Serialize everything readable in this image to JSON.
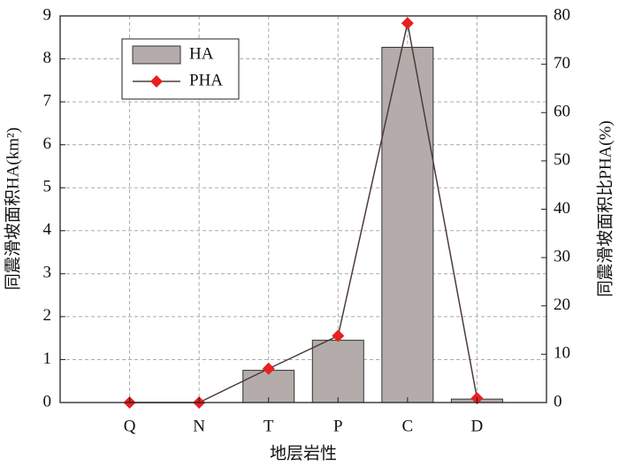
{
  "chart_data": {
    "type": "bar",
    "categories": [
      "Q",
      "N",
      "T",
      "P",
      "C",
      "D"
    ],
    "xlabel": "地层岩性",
    "ylabel": "同震滑坡面积HA(km²)",
    "y2label": "同震滑坡面积比PHA(%)",
    "series": [
      {
        "name": "HA",
        "type": "bar",
        "color": "#b4acaa",
        "values": [
          0,
          0,
          0.75,
          1.45,
          8.27,
          0.08
        ]
      },
      {
        "name": "PHA",
        "type": "line",
        "axis": "y2",
        "color": "#4d3b3b",
        "marker_color": "#e8201e",
        "values": [
          0,
          0,
          7.0,
          13.8,
          78.5,
          0.9
        ]
      }
    ],
    "ylim": [
      0,
      9
    ],
    "yticks": [
      0,
      1,
      2,
      3,
      4,
      5,
      6,
      7,
      8,
      9
    ],
    "y2lim": [
      0,
      80
    ],
    "y2ticks": [
      0,
      10,
      20,
      30,
      40,
      50,
      60,
      70,
      80
    ],
    "grid": true,
    "legend": "upper left"
  }
}
